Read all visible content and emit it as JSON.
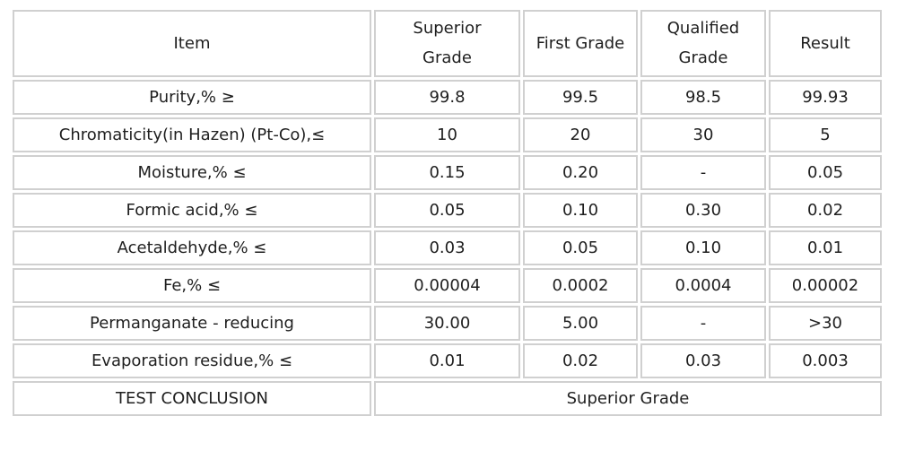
{
  "table": {
    "columns": [
      "Item",
      "Superior Grade",
      "First Grade",
      "Qualified Grade",
      "Result"
    ],
    "rows": [
      {
        "item": "Purity,% ≥",
        "values": [
          "99.8",
          "99.5",
          "98.5",
          "99.93"
        ]
      },
      {
        "item": "Chromaticity(in Hazen) (Pt-Co),≤",
        "values": [
          "10",
          "20",
          "30",
          "5"
        ]
      },
      {
        "item": "Moisture,% ≤",
        "values": [
          "0.15",
          "0.20",
          "-",
          "0.05"
        ]
      },
      {
        "item": "Formic acid,% ≤",
        "values": [
          "0.05",
          "0.10",
          "0.30",
          "0.02"
        ]
      },
      {
        "item": "Acetaldehyde,% ≤",
        "values": [
          "0.03",
          "0.05",
          "0.10",
          "0.01"
        ]
      },
      {
        "item": "Fe,% ≤",
        "values": [
          "0.00004",
          "0.0002",
          "0.0004",
          "0.00002"
        ]
      },
      {
        "item": "Permanganate - reducing",
        "values": [
          "30.00",
          "5.00",
          "-",
          ">30"
        ]
      },
      {
        "item": "Evaporation residue,% ≤",
        "values": [
          "0.01",
          "0.02",
          "0.03",
          "0.003"
        ]
      }
    ],
    "conclusion": {
      "label": "TEST CONCLUSION",
      "value": "Superior Grade"
    }
  },
  "colors": {
    "border": "#d0d0d0",
    "text": "#1f1f1f",
    "background": "#ffffff"
  }
}
